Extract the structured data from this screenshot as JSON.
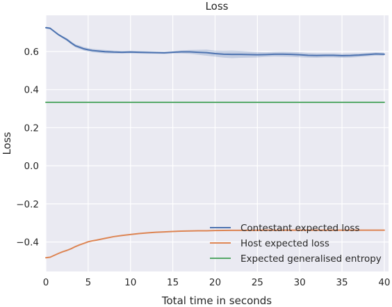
{
  "chart_data": {
    "type": "line",
    "title": "Loss",
    "xlabel": "Total time in seconds",
    "ylabel": "Loss",
    "xlim": [
      0,
      40.5
    ],
    "ylim": [
      -0.555,
      0.79
    ],
    "xticks": [
      0,
      5,
      10,
      15,
      20,
      25,
      30,
      35,
      40
    ],
    "yticks": [
      -0.4,
      -0.2,
      0.0,
      0.2,
      0.4,
      0.6
    ],
    "ytick_labels": [
      "−0.4",
      "−0.2",
      "0.0",
      "0.2",
      "0.4",
      "0.6"
    ],
    "grid": true,
    "legend_position": "lower-right",
    "background": "#eaeaf2",
    "series": [
      {
        "name": "Contestant expected loss",
        "color": "#4c72b0",
        "x": [
          0,
          0.5,
          1,
          1.5,
          2,
          2.5,
          3,
          3.5,
          4,
          4.5,
          5,
          5.5,
          6,
          7,
          8,
          9,
          10,
          11,
          12,
          13,
          14,
          15,
          16,
          17,
          18,
          19,
          20,
          21,
          22,
          23,
          24,
          25,
          26,
          27,
          28,
          29,
          30,
          31,
          32,
          33,
          34,
          35,
          36,
          37,
          38,
          39,
          40
        ],
        "y": [
          0.725,
          0.722,
          0.705,
          0.688,
          0.675,
          0.662,
          0.645,
          0.63,
          0.622,
          0.614,
          0.609,
          0.605,
          0.603,
          0.599,
          0.597,
          0.596,
          0.597,
          0.596,
          0.595,
          0.594,
          0.593,
          0.596,
          0.598,
          0.598,
          0.596,
          0.594,
          0.589,
          0.586,
          0.585,
          0.585,
          0.584,
          0.583,
          0.584,
          0.586,
          0.586,
          0.585,
          0.583,
          0.58,
          0.579,
          0.58,
          0.58,
          0.578,
          0.579,
          0.581,
          0.584,
          0.587,
          0.586
        ],
        "ci_lower": [
          0.72,
          0.717,
          0.7,
          0.683,
          0.669,
          0.655,
          0.637,
          0.622,
          0.613,
          0.605,
          0.6,
          0.596,
          0.594,
          0.59,
          0.589,
          0.589,
          0.59,
          0.589,
          0.588,
          0.588,
          0.587,
          0.59,
          0.59,
          0.588,
          0.583,
          0.578,
          0.573,
          0.568,
          0.565,
          0.567,
          0.568,
          0.569,
          0.572,
          0.574,
          0.573,
          0.572,
          0.57,
          0.568,
          0.567,
          0.569,
          0.569,
          0.567,
          0.568,
          0.571,
          0.575,
          0.579,
          0.578
        ],
        "ci_upper": [
          0.73,
          0.727,
          0.71,
          0.693,
          0.681,
          0.669,
          0.653,
          0.638,
          0.631,
          0.623,
          0.618,
          0.614,
          0.612,
          0.608,
          0.605,
          0.603,
          0.604,
          0.603,
          0.602,
          0.6,
          0.599,
          0.602,
          0.606,
          0.608,
          0.609,
          0.61,
          0.605,
          0.604,
          0.605,
          0.603,
          0.6,
          0.597,
          0.596,
          0.598,
          0.599,
          0.598,
          0.596,
          0.592,
          0.591,
          0.591,
          0.591,
          0.589,
          0.59,
          0.591,
          0.593,
          0.595,
          0.594
        ]
      },
      {
        "name": "Host expected loss",
        "color": "#dd8452",
        "x": [
          0,
          0.5,
          1,
          1.5,
          2,
          2.5,
          3,
          3.5,
          4,
          4.5,
          5,
          5.5,
          6,
          7,
          8,
          9,
          10,
          11,
          12,
          13,
          14,
          15,
          16,
          17,
          18,
          19,
          20,
          22,
          24,
          26,
          28,
          30,
          32,
          34,
          36,
          38,
          40
        ],
        "y": [
          -0.483,
          -0.48,
          -0.47,
          -0.46,
          -0.451,
          -0.444,
          -0.435,
          -0.424,
          -0.415,
          -0.407,
          -0.399,
          -0.394,
          -0.39,
          -0.381,
          -0.372,
          -0.366,
          -0.361,
          -0.356,
          -0.352,
          -0.349,
          -0.347,
          -0.345,
          -0.343,
          -0.342,
          -0.341,
          -0.341,
          -0.34,
          -0.339,
          -0.339,
          -0.338,
          -0.338,
          -0.338,
          -0.338,
          -0.338,
          -0.338,
          -0.338,
          -0.338
        ]
      },
      {
        "name": "Expected generalised entropy",
        "color": "#55a868",
        "x": [
          0,
          40
        ],
        "y": [
          0.333,
          0.333
        ]
      }
    ]
  }
}
